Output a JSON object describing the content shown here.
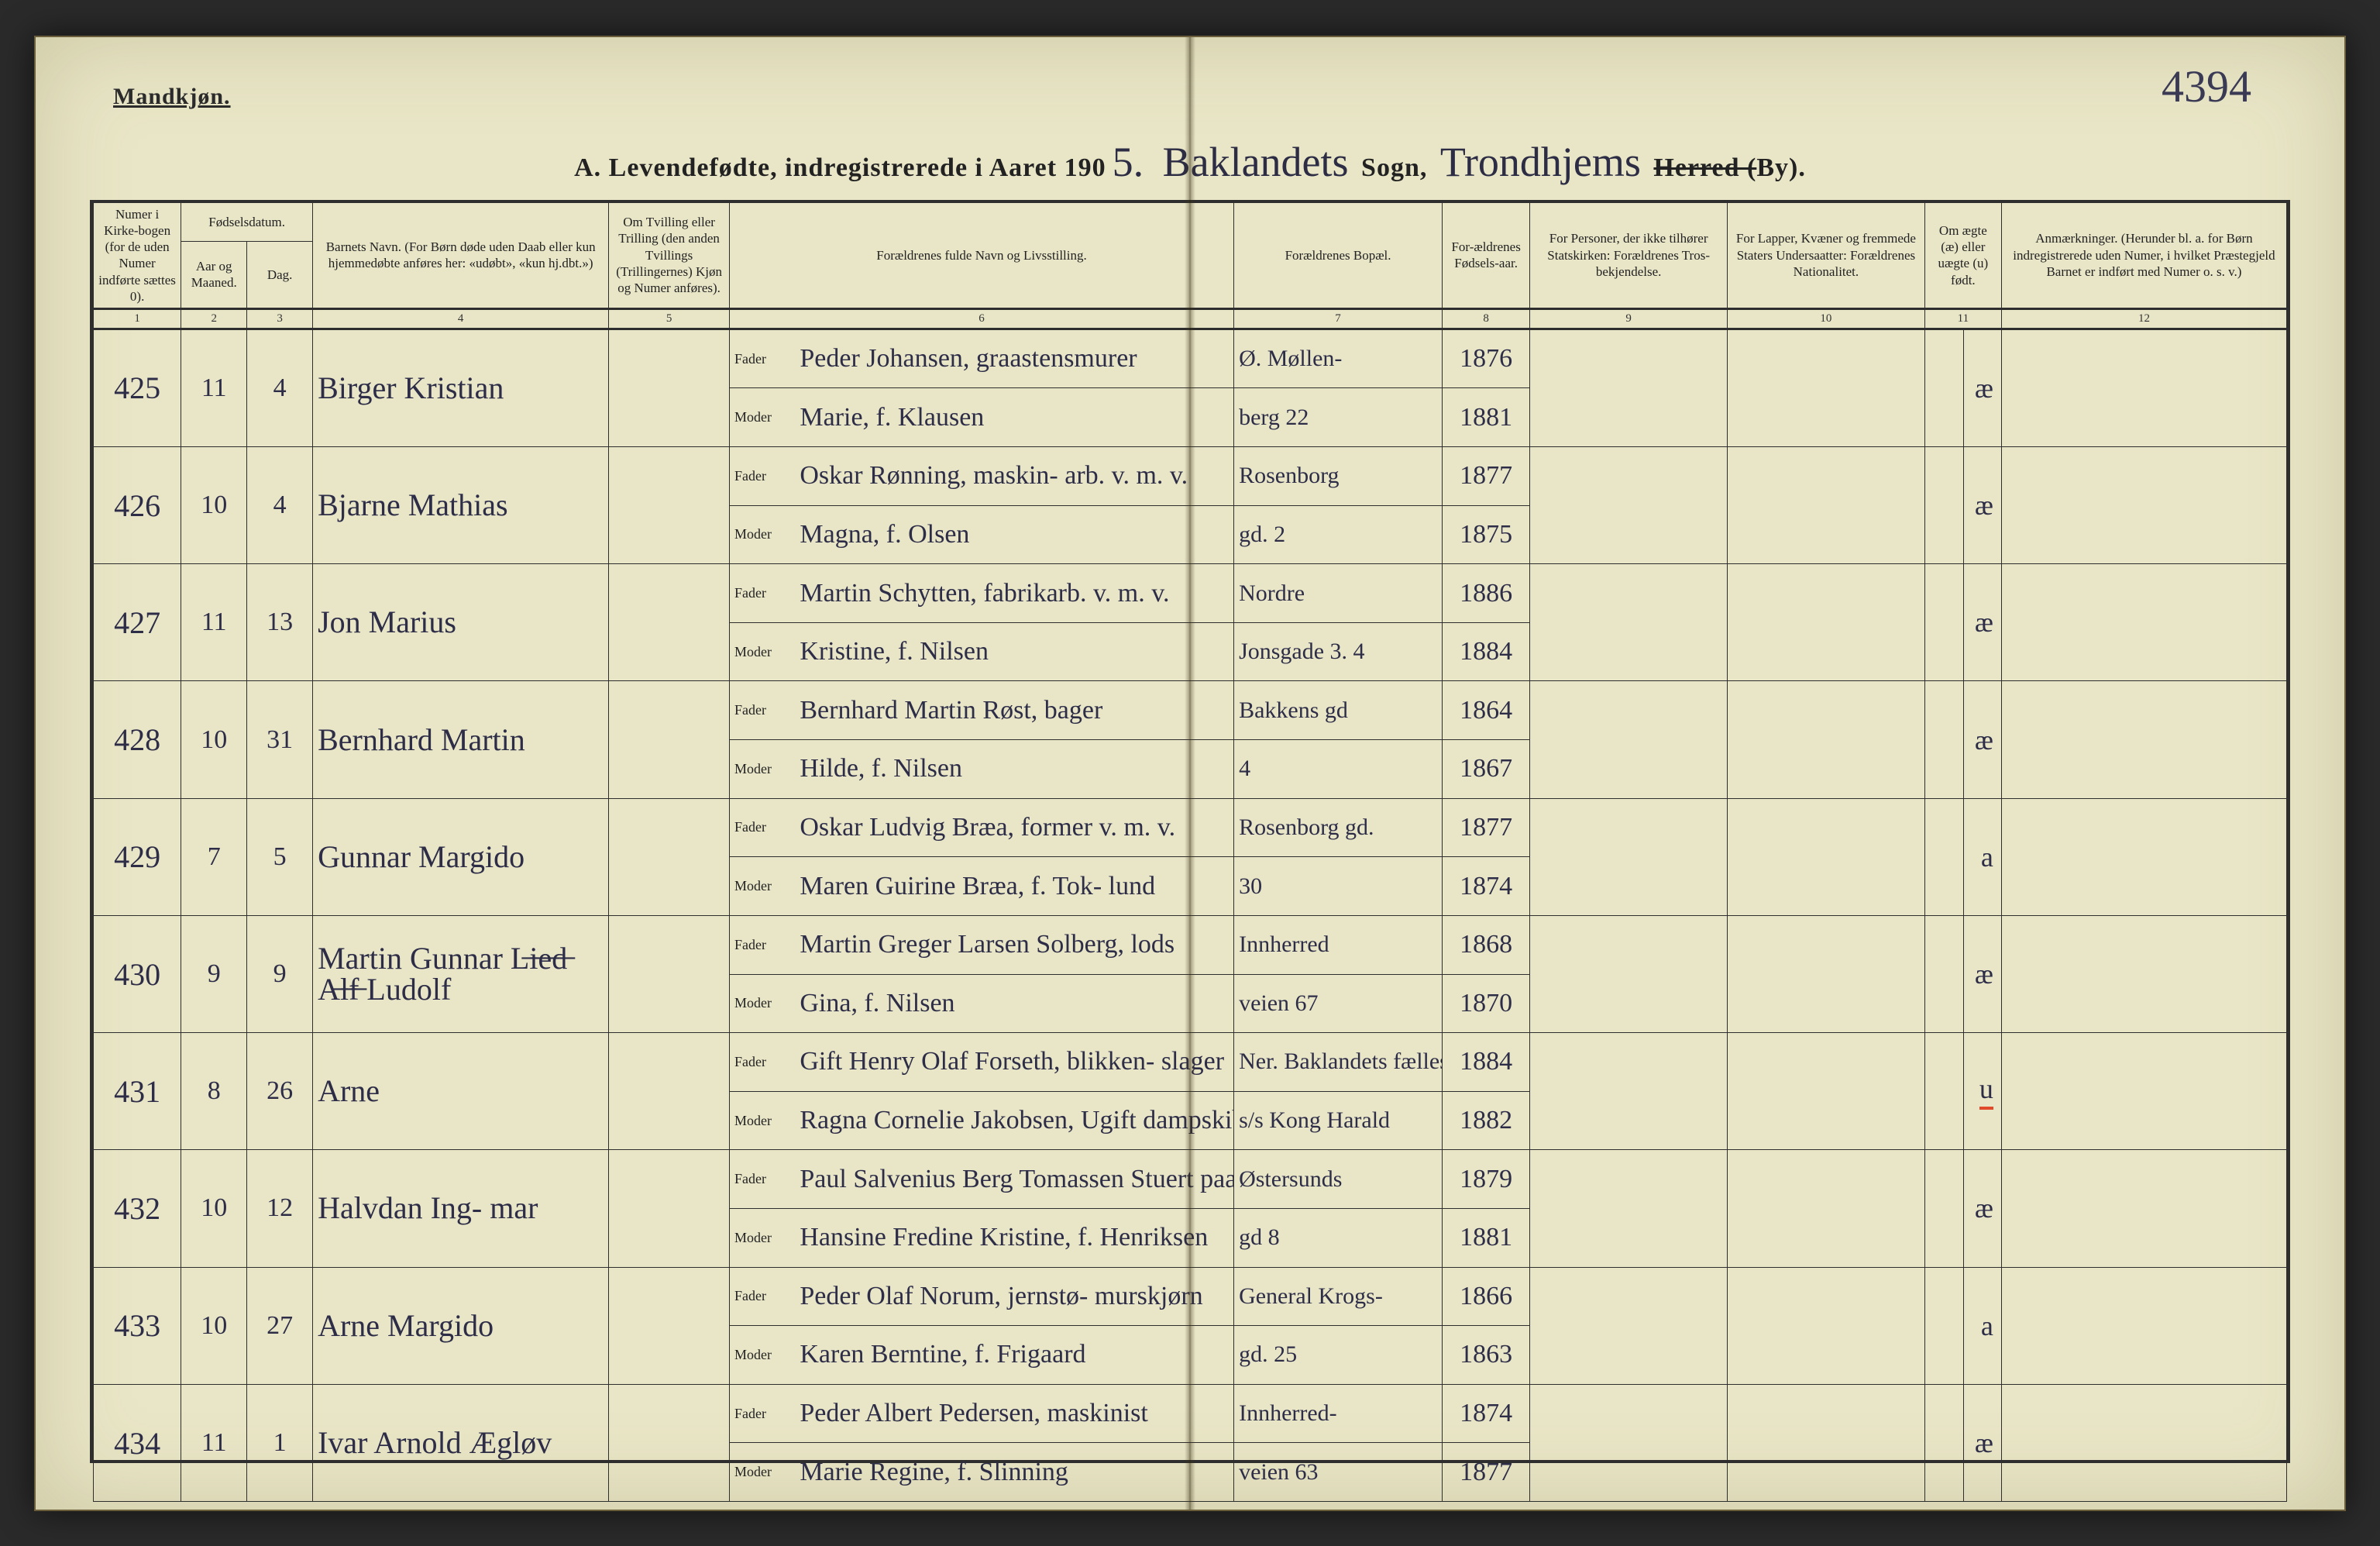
{
  "page": {
    "gender_heading": "Mandkjøn.",
    "annotation_topright": "4394",
    "title_prefix": "A.  Levendefødte, indregistrerede i Aaret 190",
    "year_suffix": "5.",
    "sogn_script": "Baklandets",
    "sogn_label": "Sogn,",
    "herred_script": "Trondhjems",
    "herred_label_struck": "Herred (",
    "herred_label_tail": "By).",
    "background_color": "#e9e6c7",
    "ink_color": "#2d2d48",
    "rule_color": "#2e2e2e"
  },
  "columns": {
    "1": "Numer i Kirke-bogen (for de uden Numer indførte sættes 0).",
    "2_group": "Fødselsdatum.",
    "2": "Aar og Maaned.",
    "3": "Dag.",
    "4": "Barnets Navn.\n(For Børn døde uden Daab eller kun hjemmedøbte anføres her: «udøbt», «kun hj.dbt.»)",
    "5": "Om Tvilling eller Trilling (den anden Tvillings (Trillingernes) Kjøn og Numer anføres).",
    "6": "Forældrenes fulde Navn og Livsstilling.",
    "7": "Forældrenes Bopæl.",
    "8": "For-ældrenes Fødsels-aar.",
    "9": "For Personer, der ikke tilhører Statskirken: Forældrenes Tros-bekjendelse.",
    "10": "For Lapper, Kvæner og fremmede Staters Undersaatter: Forældrenes Nationalitet.",
    "11": "Om ægte (æ) eller uægte (u) født.",
    "12": "Anmærkninger.\n(Herunder bl. a. for Børn indregistrerede uden Numer, i hvilket Præstegjeld Barnet er indført med Numer o. s. v.)",
    "fader": "Fader",
    "moder": "Moder"
  },
  "colnums": [
    "1",
    "2",
    "3",
    "4",
    "5",
    "6",
    "7",
    "8",
    "9",
    "10",
    "11",
    "12"
  ],
  "rows": [
    {
      "no": "425",
      "month": "11",
      "day": "4",
      "child": "Birger Kristian",
      "father": "Peder Johansen, graastensmurer",
      "mother": "Marie, f. Klausen",
      "addr_f": "Ø. Møllen-",
      "addr_m": "berg 22",
      "year_f": "1876",
      "year_m": "1881",
      "mark": "æ"
    },
    {
      "no": "426",
      "month": "10",
      "day": "4",
      "child": "Bjarne Mathias",
      "father": "Oskar Rønning, maskin- arb. v. m. v.",
      "mother": "Magna, f. Olsen",
      "addr_f": "Rosenborg",
      "addr_m": "gd. 2",
      "year_f": "1877",
      "year_m": "1875",
      "mark": "æ"
    },
    {
      "no": "427",
      "month": "11",
      "day": "13",
      "child": "Jon Marius",
      "father": "Martin Schytten, fabrikarb. v. m. v.",
      "mother": "Kristine, f. Nilsen",
      "addr_f": "Nordre",
      "addr_m": "Jonsgade 3. 4",
      "year_f": "1886",
      "year_m": "1884",
      "mark": "æ"
    },
    {
      "no": "428",
      "month": "10",
      "day": "31",
      "child": "Bernhard Martin",
      "father": "Bernhard Martin Røst, bager",
      "mother": "Hilde, f. Nilsen",
      "addr_f": "Bakkens gd",
      "addr_m": "4",
      "year_f": "1864",
      "year_m": "1867",
      "mark": "æ"
    },
    {
      "no": "429",
      "month": "7",
      "day": "5",
      "child": "Gunnar Margido",
      "father": "Oskar Ludvig Bræa, former v. m. v.",
      "mother": "Maren Guirine Bræa, f. Tok- lund",
      "addr_f": "Rosenborg gd.",
      "addr_m": "30",
      "year_f": "1877",
      "year_m": "1874",
      "mark": "a"
    },
    {
      "no": "430",
      "month": "9",
      "day": "9",
      "child": "Martin Gunnar  L̶i̶e̶d̶  A̶l̶f̶ Ludolf",
      "father": "Martin Greger Larsen Solberg, lods",
      "mother": "Gina, f. Nilsen",
      "addr_f": "Innherred",
      "addr_m": "veien 67",
      "year_f": "1868",
      "year_m": "1870",
      "mark": "æ"
    },
    {
      "no": "431",
      "month": "8",
      "day": "26",
      "child": "Arne",
      "father": "Gift Henry Olaf Forseth, blikken- slager",
      "mother": "Ragna Cornelie Jakobsen,   Ugift dampskibspige",
      "addr_f": "Ner. Baklandets fælleskontor",
      "addr_m": "s/s Kong Harald",
      "year_f": "1884",
      "year_m": "1882",
      "mark": "u",
      "mark_underlined": true
    },
    {
      "no": "432",
      "month": "10",
      "day": "12",
      "child": "Halvdan Ing- mar",
      "father": "Paul Salvenius Berg Tomassen Stuert paa s/s",
      "mother": "Hansine Fredine Kristine, f. Henriksen",
      "addr_f": "Østersunds",
      "addr_m": "gd 8",
      "year_f": "1879",
      "year_m": "1881",
      "mark": "æ"
    },
    {
      "no": "433",
      "month": "10",
      "day": "27",
      "child": "Arne Margido",
      "father": "Peder Olaf Norum, jernstø- murskjørn",
      "mother": "Karen Berntine, f. Frigaard",
      "addr_f": "General Krogs-",
      "addr_m": "gd. 25",
      "year_f": "1866",
      "year_m": "1863",
      "mark": "a"
    },
    {
      "no": "434",
      "month": "11",
      "day": "1",
      "child": "Ivar Arnold Ægløv",
      "father": "Peder Albert Pedersen, maskinist",
      "mother": "Marie Regine, f. Slinning",
      "addr_f": "Innherred-",
      "addr_m": "veien 63",
      "year_f": "1874",
      "year_m": "1877",
      "mark": "æ"
    }
  ]
}
